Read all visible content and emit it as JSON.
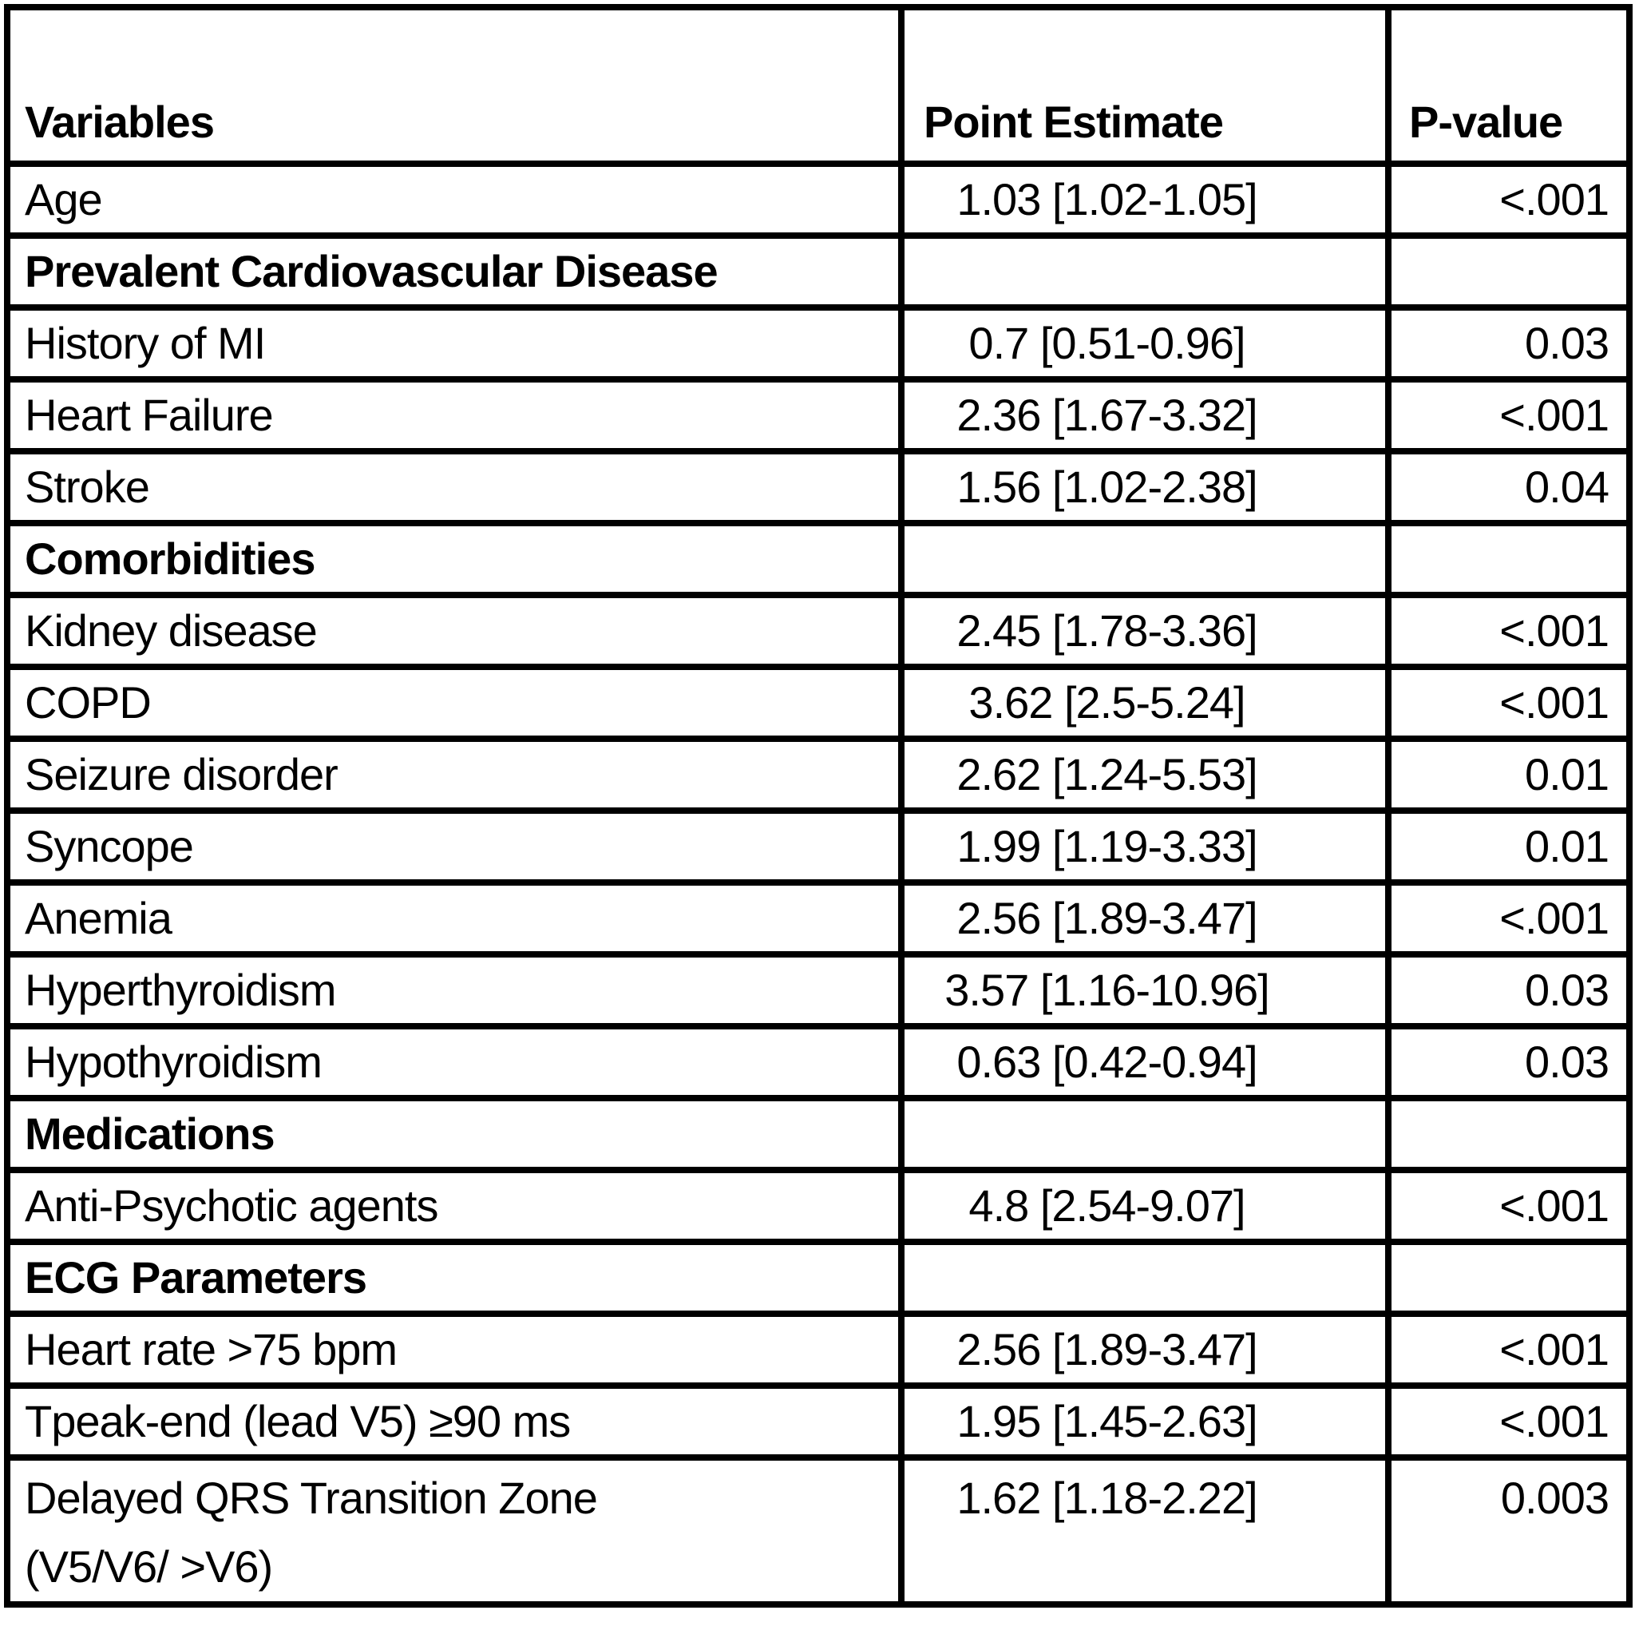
{
  "table": {
    "columns": [
      "Variables",
      "Point Estimate",
      "P-value"
    ],
    "rows": [
      {
        "type": "data",
        "label": "Age",
        "estimate": "1.03 [1.02-1.05]",
        "p": "<.001"
      },
      {
        "type": "section",
        "label": "Prevalent Cardiovascular Disease",
        "estimate": "",
        "p": ""
      },
      {
        "type": "data",
        "label": "History of MI",
        "estimate": "0.7 [0.51-0.96]",
        "p": "0.03"
      },
      {
        "type": "data",
        "label": "Heart Failure",
        "estimate": "2.36 [1.67-3.32]",
        "p": "<.001"
      },
      {
        "type": "data",
        "label": "Stroke",
        "estimate": "1.56 [1.02-2.38]",
        "p": "0.04"
      },
      {
        "type": "section",
        "label": "Comorbidities",
        "estimate": "",
        "p": ""
      },
      {
        "type": "data",
        "label": "Kidney disease",
        "estimate": "2.45 [1.78-3.36]",
        "p": "<.001"
      },
      {
        "type": "data",
        "label": "COPD",
        "estimate": "3.62 [2.5-5.24]",
        "p": "<.001"
      },
      {
        "type": "data",
        "label": "Seizure disorder",
        "estimate": "2.62 [1.24-5.53]",
        "p": "0.01"
      },
      {
        "type": "data",
        "label": "Syncope",
        "estimate": "1.99 [1.19-3.33]",
        "p": "0.01"
      },
      {
        "type": "data",
        "label": "Anemia",
        "estimate": "2.56 [1.89-3.47]",
        "p": "<.001"
      },
      {
        "type": "data",
        "label": "Hyperthyroidism",
        "estimate": "3.57 [1.16-10.96]",
        "p": "0.03"
      },
      {
        "type": "data",
        "label": "Hypothyroidism",
        "estimate": "0.63 [0.42-0.94]",
        "p": "0.03"
      },
      {
        "type": "section",
        "label": "Medications",
        "estimate": "",
        "p": ""
      },
      {
        "type": "data",
        "label": "Anti-Psychotic agents",
        "estimate": "4.8 [2.54-9.07]",
        "p": "<.001"
      },
      {
        "type": "section",
        "label": "ECG Parameters",
        "estimate": "",
        "p": ""
      },
      {
        "type": "data",
        "label": "Heart rate >75 bpm",
        "estimate": "2.56 [1.89-3.47]",
        "p": "<.001"
      },
      {
        "type": "data",
        "label": "Tpeak-end (lead V5) ≥90 ms",
        "estimate": "1.95 [1.45-2.63]",
        "p": "<.001"
      },
      {
        "type": "data",
        "label": "Delayed QRS Transition Zone",
        "label_line2": "(V5/V6/ >V6)",
        "estimate": "1.62 [1.18-2.22]",
        "p": "0.003",
        "tall": true
      }
    ]
  }
}
